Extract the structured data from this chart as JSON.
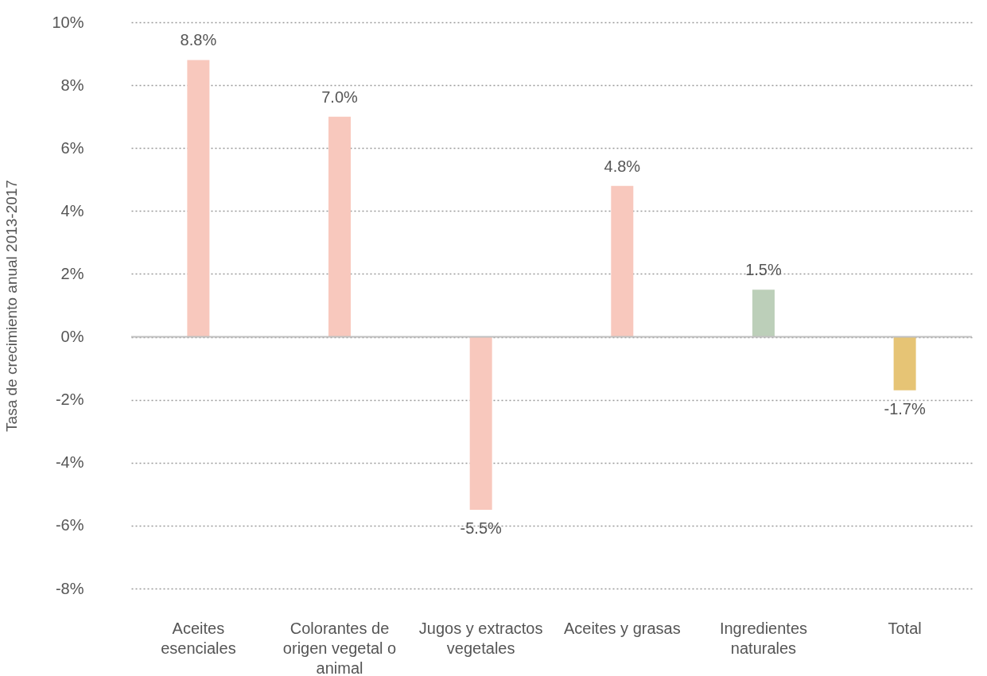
{
  "chart_data": {
    "type": "bar",
    "ylabel": "Tasa de crecimiento anual 2013-2017",
    "categories": [
      "Aceites esenciales",
      "Colorantes de origen vegetal o animal",
      "Jugos y extractos vegetales",
      "Aceites y grasas",
      "Ingredientes naturales",
      "Total"
    ],
    "values": [
      8.8,
      7.0,
      -5.5,
      4.8,
      1.5,
      -1.7
    ],
    "colors": [
      "#f8c8bd",
      "#f8c8bd",
      "#f8c8bd",
      "#f8c8bd",
      "#bccfb9",
      "#e6c475"
    ],
    "value_labels": [
      "8.8%",
      "7.0%",
      "-5.5%",
      "4.8%",
      "1.5%",
      "-1.7%"
    ],
    "ylim": [
      -8,
      10
    ],
    "yticks": [
      {
        "value": -8,
        "label": "-8%"
      },
      {
        "value": -6,
        "label": "-6%"
      },
      {
        "value": -4,
        "label": "-4%"
      },
      {
        "value": -2,
        "label": "-2%"
      },
      {
        "value": 0,
        "label": "0%"
      },
      {
        "value": 2,
        "label": "2%"
      },
      {
        "value": 4,
        "label": "4%"
      },
      {
        "value": 6,
        "label": "6%"
      },
      {
        "value": 8,
        "label": "8%"
      },
      {
        "value": 10,
        "label": "10%"
      }
    ],
    "ref_lines": [
      {
        "axis": "y",
        "value": 0,
        "color": "#c0c0c0"
      }
    ],
    "grid": "y"
  }
}
